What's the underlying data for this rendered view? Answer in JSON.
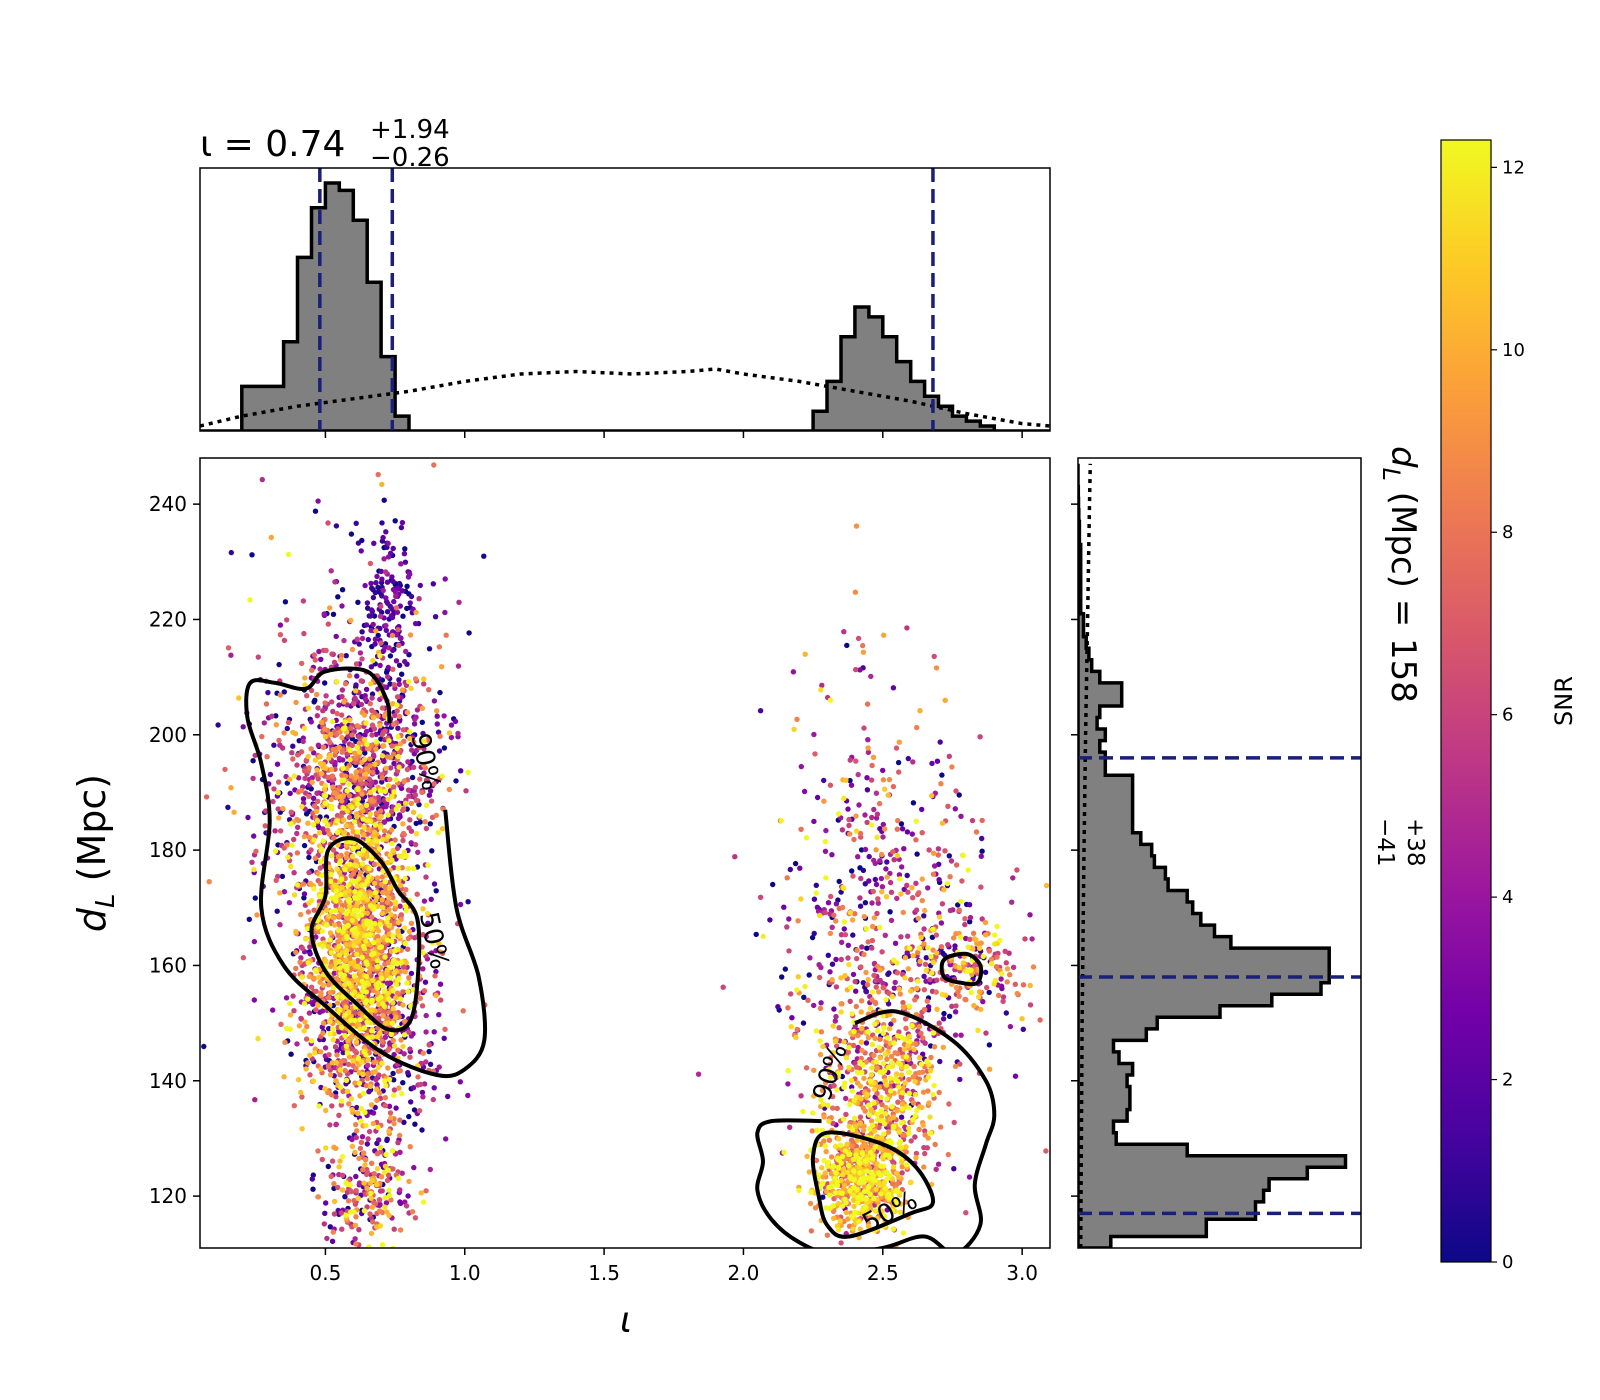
{
  "chart_data": {
    "type": "scatter",
    "title": "",
    "xlabel": "ι",
    "ylabel_main": "d",
    "ylabel_sub": "L",
    "ylabel_unit": " (Mpc)",
    "xlim": [
      0.05,
      3.1
    ],
    "ylim": [
      111,
      248
    ],
    "x_ticks": [
      0.5,
      1.0,
      1.5,
      2.0,
      2.5,
      3.0
    ],
    "x_tick_labels": [
      "0.5",
      "1.0",
      "1.5",
      "2.0",
      "2.5",
      "3.0"
    ],
    "y_ticks": [
      120,
      140,
      160,
      180,
      200,
      220,
      240
    ],
    "y_tick_labels": [
      "120",
      "140",
      "160",
      "180",
      "200",
      "220",
      "240"
    ],
    "colorbar": {
      "label": "SNR",
      "range": [
        0,
        12.3
      ],
      "ticks": [
        0,
        2,
        4,
        6,
        8,
        10,
        12
      ],
      "tick_labels": [
        "0",
        "2",
        "4",
        "6",
        "8",
        "10",
        "12"
      ],
      "colormap": "plasma",
      "stops": [
        "#0d0887",
        "#46039f",
        "#7201a8",
        "#9c179e",
        "#bd3786",
        "#d8576b",
        "#ed7953",
        "#fb9f3a",
        "#fdca26",
        "#f0f921"
      ]
    },
    "scatter_clusters": [
      {
        "cx": 0.62,
        "cy": 165,
        "sx": 0.1,
        "sy": 14,
        "n": 1500,
        "snr_mean": 9.5,
        "snr_sd": 2.5
      },
      {
        "cx": 0.64,
        "cy": 195,
        "sx": 0.14,
        "sy": 9,
        "n": 700,
        "snr_mean": 5.5,
        "snr_sd": 3.5
      },
      {
        "cx": 0.68,
        "cy": 150,
        "sx": 0.12,
        "sy": 9,
        "n": 500,
        "snr_mean": 3.5,
        "snr_sd": 3.0
      },
      {
        "cx": 0.72,
        "cy": 222,
        "sx": 0.05,
        "sy": 8,
        "n": 160,
        "snr_mean": 1.5,
        "snr_sd": 1.5
      },
      {
        "cx": 0.55,
        "cy": 190,
        "sx": 0.2,
        "sy": 22,
        "n": 500,
        "snr_mean": 4.0,
        "snr_sd": 4.0
      },
      {
        "cx": 0.65,
        "cy": 121,
        "sx": 0.08,
        "sy": 5,
        "n": 220,
        "snr_mean": 7.0,
        "snr_sd": 4.0
      },
      {
        "cx": 2.42,
        "cy": 123,
        "sx": 0.08,
        "sy": 5,
        "n": 600,
        "snr_mean": 10.0,
        "snr_sd": 2.5
      },
      {
        "cx": 2.5,
        "cy": 140,
        "sx": 0.11,
        "sy": 8,
        "n": 550,
        "snr_mean": 9.0,
        "snr_sd": 3.0
      },
      {
        "cx": 2.55,
        "cy": 163,
        "sx": 0.22,
        "sy": 14,
        "n": 500,
        "snr_mean": 5.0,
        "snr_sd": 4.0
      },
      {
        "cx": 2.8,
        "cy": 160,
        "sx": 0.09,
        "sy": 4,
        "n": 140,
        "snr_mean": 8.0,
        "snr_sd": 3.0
      },
      {
        "cx": 2.45,
        "cy": 190,
        "sx": 0.15,
        "sy": 15,
        "n": 130,
        "snr_mean": 6.0,
        "snr_sd": 4.0
      }
    ],
    "contours": [
      {
        "label": "90%",
        "label_x": 0.83,
        "label_y": 195,
        "label_angle": 78,
        "points": [
          [
            0.93,
            187
          ],
          [
            0.97,
            170
          ],
          [
            1.05,
            158
          ],
          [
            1.07,
            147
          ],
          [
            1.0,
            142
          ],
          [
            0.9,
            141
          ],
          [
            0.7,
            145
          ],
          [
            0.5,
            153
          ],
          [
            0.35,
            160
          ],
          [
            0.27,
            170
          ],
          [
            0.3,
            185
          ],
          [
            0.27,
            195
          ],
          [
            0.22,
            203
          ],
          [
            0.23,
            209
          ],
          [
            0.32,
            209
          ],
          [
            0.43,
            208
          ],
          [
            0.5,
            211
          ],
          [
            0.65,
            211
          ],
          [
            0.72,
            206
          ],
          [
            0.73,
            202
          ]
        ]
      },
      {
        "label": "50%",
        "label_x": 0.86,
        "label_y": 164,
        "label_angle": 78,
        "points": [
          [
            0.83,
            168
          ],
          [
            0.83,
            157
          ],
          [
            0.8,
            150
          ],
          [
            0.72,
            149
          ],
          [
            0.62,
            153
          ],
          [
            0.5,
            159
          ],
          [
            0.45,
            166
          ],
          [
            0.5,
            172
          ],
          [
            0.51,
            180
          ],
          [
            0.6,
            182
          ],
          [
            0.7,
            178
          ],
          [
            0.76,
            173
          ]
        ]
      },
      {
        "label": "90%",
        "label_x": 2.34,
        "label_y": 141,
        "label_angle": -72,
        "points": [
          [
            2.28,
            133
          ],
          [
            2.1,
            133
          ],
          [
            2.05,
            131
          ],
          [
            2.07,
            126
          ],
          [
            2.05,
            121
          ],
          [
            2.1,
            116
          ],
          [
            2.2,
            112
          ],
          [
            2.32,
            110
          ],
          [
            2.5,
            111
          ],
          [
            2.65,
            113
          ],
          [
            2.76,
            110
          ],
          [
            2.85,
            115
          ],
          [
            2.83,
            122
          ],
          [
            2.87,
            129
          ],
          [
            2.9,
            134
          ],
          [
            2.87,
            140
          ],
          [
            2.75,
            147
          ],
          [
            2.55,
            152
          ],
          [
            2.4,
            150
          ]
        ]
      },
      {
        "label": "50%",
        "label_x": 2.54,
        "label_y": 116,
        "label_angle": -28,
        "points": [
          [
            2.6,
            117
          ],
          [
            2.68,
            119
          ],
          [
            2.62,
            125
          ],
          [
            2.5,
            129
          ],
          [
            2.3,
            131
          ],
          [
            2.25,
            127
          ],
          [
            2.27,
            120
          ],
          [
            2.3,
            115
          ],
          [
            2.38,
            113
          ]
        ]
      },
      {
        "label": "",
        "label_x": 0,
        "label_y": 0,
        "label_angle": 0,
        "points": [
          [
            2.72,
            161
          ],
          [
            2.8,
            162
          ],
          [
            2.85,
            160
          ],
          [
            2.84,
            157
          ],
          [
            2.78,
            157
          ],
          [
            2.72,
            158
          ]
        ]
      }
    ],
    "top_panel": {
      "title_symbol": "ι",
      "title_equals": " = 0.74",
      "title_sup": "+1.94",
      "title_sub": "−0.26",
      "edges": [
        0.05,
        0.2,
        0.35,
        0.4,
        0.45,
        0.5,
        0.55,
        0.6,
        0.65,
        0.7,
        0.75,
        0.8,
        0.85,
        0.9,
        2.25,
        2.3,
        2.35,
        2.4,
        2.45,
        2.5,
        2.55,
        2.6,
        2.65,
        2.7,
        2.75,
        2.8,
        2.85,
        2.9,
        2.95,
        3.1
      ],
      "heights": [
        0,
        0.18,
        0.36,
        0.7,
        0.9,
        1.0,
        0.97,
        0.85,
        0.6,
        0.3,
        0.06,
        0,
        0,
        0,
        0.08,
        0.2,
        0.38,
        0.5,
        0.46,
        0.38,
        0.28,
        0.2,
        0.14,
        0.1,
        0.06,
        0.04,
        0.02,
        0,
        0
      ],
      "prior_x": [
        0.05,
        0.2,
        0.4,
        0.6,
        0.8,
        1.0,
        1.2,
        1.4,
        1.6,
        1.8,
        1.9,
        2.0,
        2.2,
        2.4,
        2.6,
        2.8,
        3.0,
        3.1
      ],
      "prior_y": [
        0.02,
        0.06,
        0.1,
        0.13,
        0.16,
        0.2,
        0.23,
        0.24,
        0.23,
        0.24,
        0.25,
        0.23,
        0.2,
        0.16,
        0.12,
        0.07,
        0.03,
        0.02
      ],
      "dashed_x": [
        0.48,
        0.74,
        2.68
      ]
    },
    "right_panel": {
      "title_main": "d",
      "title_sub_symbol": "L",
      "title_rest": " (Mpc) = 158",
      "title_sup": "+38",
      "title_sub": "−41",
      "edges": [
        111,
        113,
        116,
        119,
        121,
        123,
        125,
        127,
        129,
        131,
        133,
        135,
        137,
        139,
        141,
        143,
        145,
        147,
        149,
        151,
        153,
        155,
        157,
        159,
        161,
        163,
        165,
        167,
        169,
        171,
        173,
        175,
        177,
        179,
        181,
        183,
        185,
        187,
        189,
        191,
        193,
        195,
        197,
        199,
        201,
        203,
        205,
        207,
        209,
        211,
        213,
        215,
        217,
        219,
        221,
        223,
        225,
        227,
        229,
        231,
        233,
        235,
        237,
        239,
        241,
        243,
        245,
        247
      ],
      "heights": [
        0.12,
        0.47,
        0.65,
        0.68,
        0.7,
        0.84,
        0.98,
        0.4,
        0.14,
        0.13,
        0.18,
        0.19,
        0.19,
        0.18,
        0.2,
        0.15,
        0.13,
        0.25,
        0.29,
        0.52,
        0.71,
        0.89,
        0.92,
        0.92,
        0.92,
        0.56,
        0.5,
        0.45,
        0.42,
        0.4,
        0.33,
        0.32,
        0.28,
        0.27,
        0.23,
        0.2,
        0.2,
        0.2,
        0.2,
        0.2,
        0.1,
        0.1,
        0.08,
        0.1,
        0.07,
        0.08,
        0.16,
        0.16,
        0.08,
        0.05,
        0.04,
        0.03,
        0.02,
        0.02,
        0.01,
        0.01,
        0.01,
        0.01,
        0.01,
        0.01,
        0.005,
        0.005,
        0.003,
        0.002,
        0.001,
        0,
        0
      ],
      "prior_y": [
        111,
        150,
        180,
        200,
        220,
        240,
        247
      ],
      "prior_x": [
        0.01,
        0.015,
        0.022,
        0.028,
        0.035,
        0.042,
        0.045
      ],
      "dashed_y": [
        117,
        158,
        196
      ]
    }
  }
}
